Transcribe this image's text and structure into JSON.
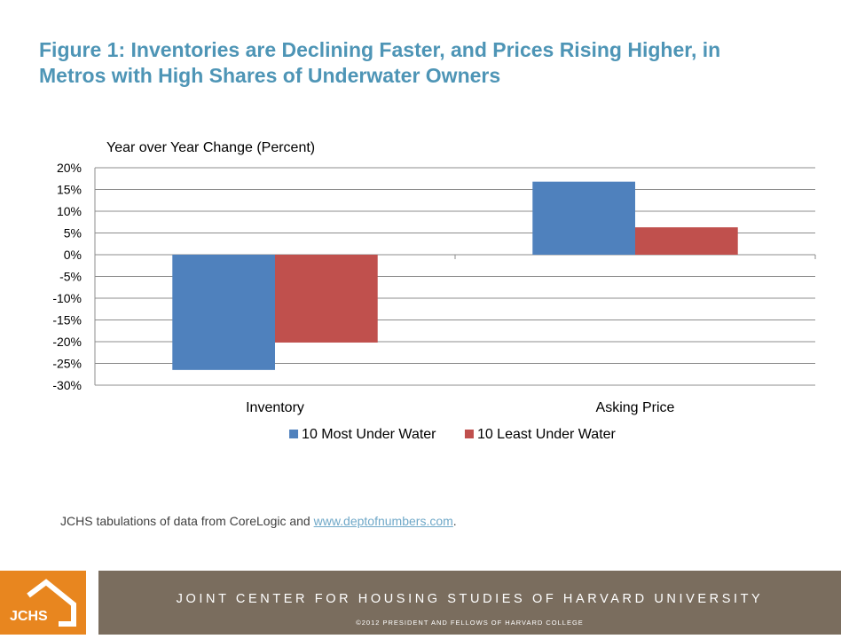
{
  "title": {
    "line1": "Figure 1: Inventories are Declining Faster, and Prices Rising Higher, in",
    "line2": "Metros with High Shares of Underwater Owners"
  },
  "chart_data": {
    "type": "bar",
    "title": "",
    "ylabel": "Year over Year Change (Percent)",
    "xlabel": "",
    "categories": [
      "Inventory",
      "Asking Price"
    ],
    "series": [
      {
        "name": "10 Most Under Water",
        "values": [
          -26.5,
          16.8
        ],
        "color": "#4f81bd"
      },
      {
        "name": "10 Least Under Water",
        "values": [
          -20.2,
          6.3
        ],
        "color": "#c0504d"
      }
    ],
    "ylim": [
      -30,
      20
    ],
    "yticks": [
      20,
      15,
      10,
      5,
      0,
      -5,
      -10,
      -15,
      -20,
      -25,
      -30
    ],
    "ytick_labels": [
      "20%",
      "15%",
      "10%",
      "5%",
      "0%",
      "-5%",
      "-10%",
      "-15%",
      "-20%",
      "-25%",
      "-30%"
    ],
    "grid": true,
    "legend_position": "bottom"
  },
  "source": {
    "prefix": "JCHS tabulations of data from CoreLogic and ",
    "link": "www.deptofnumbers.com",
    "suffix": "."
  },
  "footer": {
    "logo_text": "JCHS",
    "org": "JOINT CENTER FOR HOUSING STUDIES OF HARVARD UNIVERSITY",
    "copyright": "©2012  PRESIDENT  AND FELLOWS OF HARVARD COLLEGE",
    "logo_color": "#e8861f",
    "band_color": "#7a6d5e"
  }
}
